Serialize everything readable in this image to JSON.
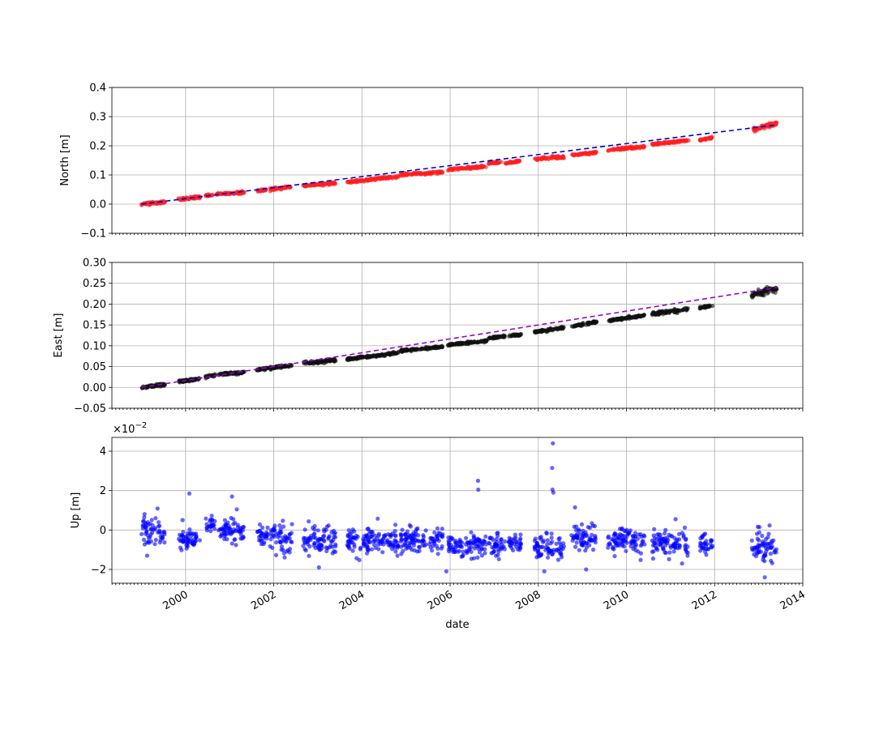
{
  "chart_data": [
    {
      "type": "scatter",
      "panel": "north",
      "ylabel": "North [m]",
      "ylim": [
        -0.1,
        0.4
      ],
      "yticks": [
        -0.1,
        0.0,
        0.1,
        0.2,
        0.3,
        0.4
      ],
      "ytick_labels": [
        "−0.1",
        "0.0",
        "0.1",
        "0.2",
        "0.3",
        "0.4"
      ],
      "grid": true,
      "series": [
        {
          "kind": "scatter",
          "color": "#ff2020",
          "segments": [
            {
              "x_start": "1999-01-01",
              "x_end": "1999-07-15",
              "y_start": 0.0,
              "y_end": 0.008,
              "scatter": 0.005
            },
            {
              "x_start": "1999-11-01",
              "x_end": "2000-05-01",
              "y_start": 0.015,
              "y_end": 0.025,
              "scatter": 0.005
            },
            {
              "x_start": "2000-06-15",
              "x_end": "2000-08-15",
              "y_start": 0.028,
              "y_end": 0.032,
              "scatter": 0.004
            },
            {
              "x_start": "2000-09-15",
              "x_end": "2001-05-01",
              "y_start": 0.035,
              "y_end": 0.04,
              "scatter": 0.004
            },
            {
              "x_start": "2001-08-15",
              "x_end": "2001-11-01",
              "y_start": 0.045,
              "y_end": 0.05,
              "scatter": 0.004
            },
            {
              "x_start": "2001-12-01",
              "x_end": "2002-06-01",
              "y_start": 0.05,
              "y_end": 0.06,
              "scatter": 0.004
            },
            {
              "x_start": "2002-09-01",
              "x_end": "2003-06-01",
              "y_start": 0.063,
              "y_end": 0.072,
              "scatter": 0.004
            },
            {
              "x_start": "2003-09-01",
              "x_end": "2004-11-01",
              "y_start": 0.075,
              "y_end": 0.095,
              "scatter": 0.004
            },
            {
              "x_start": "2004-11-15",
              "x_end": "2005-11-01",
              "y_start": 0.1,
              "y_end": 0.11,
              "scatter": 0.004
            },
            {
              "x_start": "2005-12-15",
              "x_end": "2006-11-01",
              "y_start": 0.118,
              "y_end": 0.13,
              "scatter": 0.004
            },
            {
              "x_start": "2006-11-15",
              "x_end": "2007-03-01",
              "y_start": 0.14,
              "y_end": 0.143,
              "scatter": 0.004
            },
            {
              "x_start": "2007-04-01",
              "x_end": "2007-08-01",
              "y_start": 0.14,
              "y_end": 0.148,
              "scatter": 0.003
            },
            {
              "x_start": "2007-12-01",
              "x_end": "2008-08-01",
              "y_start": 0.155,
              "y_end": 0.162,
              "scatter": 0.005
            },
            {
              "x_start": "2008-10-01",
              "x_end": "2009-05-01",
              "y_start": 0.168,
              "y_end": 0.178,
              "scatter": 0.004
            },
            {
              "x_start": "2009-08-01",
              "x_end": "2010-06-01",
              "y_start": 0.185,
              "y_end": 0.198,
              "scatter": 0.004
            },
            {
              "x_start": "2010-08-01",
              "x_end": "2011-06-01",
              "y_start": 0.205,
              "y_end": 0.218,
              "scatter": 0.004
            },
            {
              "x_start": "2011-09-01",
              "x_end": "2011-12-15",
              "y_start": 0.22,
              "y_end": 0.228,
              "scatter": 0.004
            },
            {
              "x_start": "2012-11-01",
              "x_end": "2013-06-01",
              "y_start": 0.252,
              "y_end": 0.278,
              "scatter": 0.008
            }
          ]
        },
        {
          "kind": "trend",
          "color": "#0000dd",
          "dash": "6,4",
          "points": [
            {
              "x": "1999-01-01",
              "y": 0.0
            },
            {
              "x": "2013-06-01",
              "y": 0.272
            }
          ]
        }
      ]
    },
    {
      "type": "scatter",
      "panel": "east",
      "ylabel": "East [m]",
      "ylim": [
        -0.05,
        0.3
      ],
      "yticks": [
        -0.05,
        0.0,
        0.05,
        0.1,
        0.15,
        0.2,
        0.25,
        0.3
      ],
      "ytick_labels": [
        "−0.05",
        "0.00",
        "0.05",
        "0.10",
        "0.15",
        "0.20",
        "0.25",
        "0.30"
      ],
      "grid": true,
      "series": [
        {
          "kind": "scatter",
          "color": "#111111",
          "segments": [
            {
              "x_start": "1999-01-01",
              "x_end": "1999-07-15",
              "y_start": 0.0,
              "y_end": 0.007,
              "scatter": 0.003
            },
            {
              "x_start": "1999-11-01",
              "x_end": "2000-05-01",
              "y_start": 0.014,
              "y_end": 0.021,
              "scatter": 0.003
            },
            {
              "x_start": "2000-06-15",
              "x_end": "2000-09-01",
              "y_start": 0.025,
              "y_end": 0.029,
              "scatter": 0.003
            },
            {
              "x_start": "2000-10-01",
              "x_end": "2001-05-01",
              "y_start": 0.031,
              "y_end": 0.036,
              "scatter": 0.003
            },
            {
              "x_start": "2001-08-15",
              "x_end": "2001-11-15",
              "y_start": 0.042,
              "y_end": 0.046,
              "scatter": 0.003
            },
            {
              "x_start": "2001-12-01",
              "x_end": "2002-06-01",
              "y_start": 0.047,
              "y_end": 0.053,
              "scatter": 0.003
            },
            {
              "x_start": "2002-09-01",
              "x_end": "2003-06-01",
              "y_start": 0.058,
              "y_end": 0.066,
              "scatter": 0.004
            },
            {
              "x_start": "2003-09-01",
              "x_end": "2004-11-01",
              "y_start": 0.068,
              "y_end": 0.083,
              "scatter": 0.003
            },
            {
              "x_start": "2004-11-15",
              "x_end": "2005-11-01",
              "y_start": 0.088,
              "y_end": 0.097,
              "scatter": 0.003
            },
            {
              "x_start": "2005-12-15",
              "x_end": "2006-11-01",
              "y_start": 0.102,
              "y_end": 0.112,
              "scatter": 0.003
            },
            {
              "x_start": "2006-11-15",
              "x_end": "2007-04-01",
              "y_start": 0.118,
              "y_end": 0.123,
              "scatter": 0.003
            },
            {
              "x_start": "2007-05-01",
              "x_end": "2007-08-15",
              "y_start": 0.123,
              "y_end": 0.127,
              "scatter": 0.003
            },
            {
              "x_start": "2007-12-01",
              "x_end": "2008-08-01",
              "y_start": 0.133,
              "y_end": 0.143,
              "scatter": 0.003
            },
            {
              "x_start": "2008-10-01",
              "x_end": "2009-05-01",
              "y_start": 0.146,
              "y_end": 0.157,
              "scatter": 0.003
            },
            {
              "x_start": "2009-08-01",
              "x_end": "2010-06-01",
              "y_start": 0.16,
              "y_end": 0.173,
              "scatter": 0.003
            },
            {
              "x_start": "2010-08-01",
              "x_end": "2011-06-01",
              "y_start": 0.177,
              "y_end": 0.188,
              "scatter": 0.004
            },
            {
              "x_start": "2011-09-01",
              "x_end": "2011-12-15",
              "y_start": 0.192,
              "y_end": 0.196,
              "scatter": 0.003
            },
            {
              "x_start": "2012-11-01",
              "x_end": "2013-06-01",
              "y_start": 0.222,
              "y_end": 0.238,
              "scatter": 0.008
            }
          ]
        },
        {
          "kind": "trend",
          "color": "#9900cc",
          "dash": "6,4",
          "points": [
            {
              "x": "1999-01-01",
              "y": 0.0
            },
            {
              "x": "2013-06-01",
              "y": 0.24
            }
          ]
        }
      ]
    },
    {
      "type": "scatter",
      "panel": "up",
      "ylabel": "Up [m]",
      "xlabel": "date",
      "ylim": [
        -2.7,
        4.7
      ],
      "y_scale_label": "×10",
      "y_scale_exponent": "−2",
      "yticks": [
        -2,
        0,
        2,
        4
      ],
      "ytick_labels": [
        "−2",
        "0",
        "2",
        "4"
      ],
      "grid": true,
      "xlim": [
        "1998-05-01",
        "2014-01-01"
      ],
      "xticks": [
        "2000-01-01",
        "2002-01-01",
        "2004-01-01",
        "2006-01-01",
        "2008-01-01",
        "2010-01-01",
        "2012-01-01",
        "2014-01-01"
      ],
      "xtick_labels": [
        "2000",
        "2002",
        "2004",
        "2006",
        "2008",
        "2010",
        "2012",
        "2014"
      ],
      "series": [
        {
          "kind": "scatter",
          "color": "#0000ff",
          "segments": [
            {
              "x_start": "1999-01-01",
              "x_end": "1999-07-15",
              "y_mean": 0.0,
              "scatter": 0.7
            },
            {
              "x_start": "1999-11-01",
              "x_end": "2000-05-01",
              "y_mean": -0.4,
              "scatter": 0.6
            },
            {
              "x_start": "2000-06-15",
              "x_end": "2000-09-01",
              "y_mean": 0.2,
              "scatter": 0.4
            },
            {
              "x_start": "2000-10-01",
              "x_end": "2001-05-01",
              "y_mean": 0.0,
              "scatter": 0.6
            },
            {
              "x_start": "2001-08-15",
              "x_end": "2001-11-15",
              "y_mean": -0.3,
              "scatter": 0.5
            },
            {
              "x_start": "2001-12-01",
              "x_end": "2002-06-01",
              "y_mean": -0.4,
              "scatter": 0.6
            },
            {
              "x_start": "2002-09-01",
              "x_end": "2003-06-01",
              "y_mean": -0.5,
              "scatter": 0.7
            },
            {
              "x_start": "2003-09-01",
              "x_end": "2004-11-01",
              "y_mean": -0.6,
              "scatter": 0.6
            },
            {
              "x_start": "2004-11-15",
              "x_end": "2005-11-01",
              "y_mean": -0.5,
              "scatter": 0.6
            },
            {
              "x_start": "2005-12-15",
              "x_end": "2006-11-01",
              "y_mean": -0.8,
              "scatter": 0.5
            },
            {
              "x_start": "2006-11-15",
              "x_end": "2007-04-01",
              "y_mean": -0.8,
              "scatter": 0.5
            },
            {
              "x_start": "2007-05-01",
              "x_end": "2007-08-15",
              "y_mean": -0.7,
              "scatter": 0.4
            },
            {
              "x_start": "2007-12-01",
              "x_end": "2008-08-01",
              "y_mean": -0.9,
              "scatter": 0.6
            },
            {
              "x_start": "2008-10-01",
              "x_end": "2009-05-01",
              "y_mean": -0.4,
              "scatter": 0.6
            },
            {
              "x_start": "2009-08-01",
              "x_end": "2010-06-01",
              "y_mean": -0.5,
              "scatter": 0.6
            },
            {
              "x_start": "2010-08-01",
              "x_end": "2011-06-01",
              "y_mean": -0.7,
              "scatter": 0.6
            },
            {
              "x_start": "2011-09-01",
              "x_end": "2011-12-15",
              "y_mean": -0.7,
              "scatter": 0.5
            },
            {
              "x_start": "2012-11-01",
              "x_end": "2013-06-01",
              "y_mean": -0.9,
              "scatter": 0.8
            }
          ],
          "outliers": [
            {
              "x": "2000-02-01",
              "y": 1.85
            },
            {
              "x": "2001-01-20",
              "y": 1.7
            },
            {
              "x": "2001-03-01",
              "y": 1.05
            },
            {
              "x": "2006-08-20",
              "y": 2.5
            },
            {
              "x": "2006-08-22",
              "y": 2.05
            },
            {
              "x": "2008-05-01",
              "y": 4.4
            },
            {
              "x": "2008-04-25",
              "y": 3.15
            },
            {
              "x": "2008-04-28",
              "y": 2.05
            },
            {
              "x": "2008-05-05",
              "y": 1.9
            },
            {
              "x": "2008-11-01",
              "y": 1.15
            },
            {
              "x": "2005-12-01",
              "y": -2.1
            },
            {
              "x": "2013-02-20",
              "y": -2.4
            },
            {
              "x": "2003-01-10",
              "y": -1.9
            },
            {
              "x": "2008-02-20",
              "y": -2.1
            },
            {
              "x": "2009-02-01",
              "y": -2.0
            }
          ]
        }
      ]
    }
  ]
}
